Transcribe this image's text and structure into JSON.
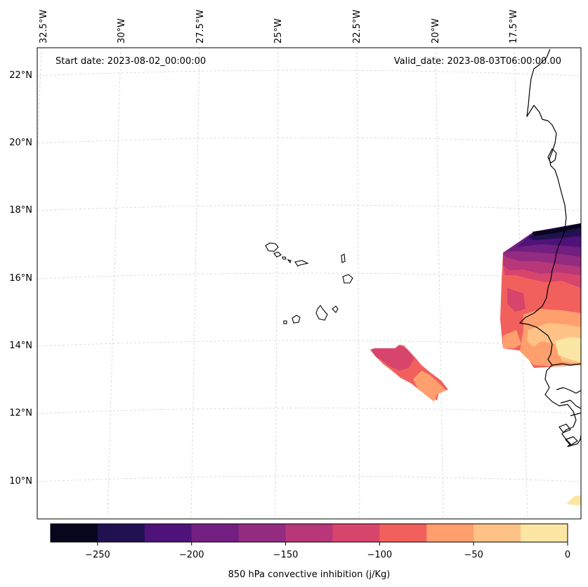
{
  "map": {
    "start_date": "Start date: 2023-08-02_00:00:00",
    "valid_date": "Valid_date: 2023-08-03T06:00:00.00",
    "lat_labels": [
      "22°N",
      "20°N",
      "18°N",
      "16°N",
      "14°N",
      "12°N",
      "10°N"
    ],
    "lon_labels": [
      "32.5°W",
      "30°W",
      "27.5°W",
      "25°W",
      "22.5°W",
      "20°W",
      "17.5°W"
    ],
    "features": [
      "Cape Verde islands",
      "West African coastline"
    ]
  },
  "colorbar": {
    "label": "850 hPa convective inhibition (j/Kg)",
    "ticks": [
      "−250",
      "−200",
      "−150",
      "−100",
      "−50",
      "0"
    ],
    "levels": [
      -275,
      -250,
      -225,
      -200,
      -175,
      -150,
      -125,
      -100,
      -75,
      -50,
      -25,
      0
    ],
    "colors": [
      "#07061c",
      "#221150",
      "#4f127b",
      "#721f81",
      "#932b80",
      "#b73779",
      "#d8456c",
      "#f1605d",
      "#fe9f6d",
      "#fec287",
      "#fce6a4"
    ]
  }
}
